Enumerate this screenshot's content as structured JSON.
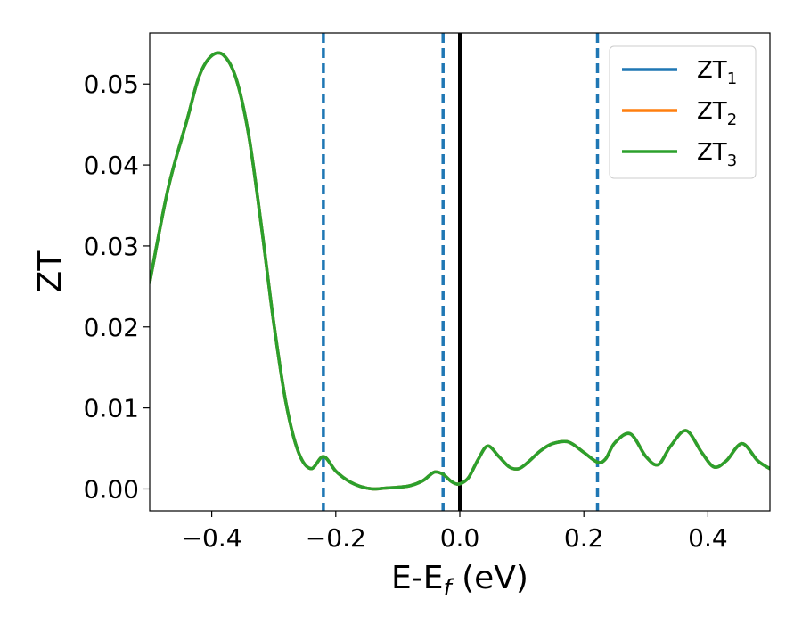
{
  "chart_data": {
    "type": "line",
    "xlabel": {
      "main": "E-E",
      "sub": "f",
      "tail": " (eV)"
    },
    "ylabel": "ZT",
    "xlim": [
      -0.5,
      0.5
    ],
    "ylim": [
      -0.0027,
      0.0563
    ],
    "xticks": [
      -0.4,
      -0.2,
      0.0,
      0.2,
      0.4
    ],
    "xtick_labels": [
      "−0.4",
      "−0.2",
      "0.0",
      "0.2",
      "0.4"
    ],
    "yticks": [
      0.0,
      0.01,
      0.02,
      0.03,
      0.04,
      0.05
    ],
    "ytick_labels": [
      "0.00",
      "0.01",
      "0.02",
      "0.03",
      "0.04",
      "0.05"
    ],
    "grid": false,
    "legend": "top-right",
    "reference_lines": [
      {
        "x": -0.22,
        "style": "dashed",
        "color": "#1f77b4"
      },
      {
        "x": -0.027,
        "style": "dashed",
        "color": "#1f77b4"
      },
      {
        "x": 0.0,
        "style": "solid",
        "color": "#000000"
      },
      {
        "x": 0.222,
        "style": "dashed",
        "color": "#1f77b4"
      }
    ],
    "x": [
      -0.5,
      -0.47,
      -0.44,
      -0.42,
      -0.4,
      -0.38,
      -0.36,
      -0.34,
      -0.32,
      -0.3,
      -0.28,
      -0.26,
      -0.24,
      -0.22,
      -0.2,
      -0.18,
      -0.16,
      -0.14,
      -0.12,
      -0.1,
      -0.08,
      -0.06,
      -0.05,
      -0.04,
      -0.027,
      -0.015,
      -0.005,
      0.005,
      0.015,
      0.03,
      0.045,
      0.063,
      0.08,
      0.095,
      0.11,
      0.13,
      0.15,
      0.175,
      0.2,
      0.222,
      0.235,
      0.25,
      0.275,
      0.3,
      0.32,
      0.34,
      0.365,
      0.39,
      0.41,
      0.43,
      0.455,
      0.48,
      0.5
    ],
    "series": [
      {
        "name": "ZT",
        "name_sub": "1",
        "color": "#1f77b4",
        "values": [
          0.0255,
          0.0372,
          0.0455,
          0.051,
          0.0535,
          0.0535,
          0.0505,
          0.0435,
          0.0325,
          0.0205,
          0.0105,
          0.0045,
          0.0025,
          0.004,
          0.0022,
          0.001,
          0.0003,
          0.0,
          0.0001,
          0.0002,
          0.0004,
          0.001,
          0.0016,
          0.0021,
          0.0018,
          0.001,
          0.0006,
          0.0008,
          0.0015,
          0.0037,
          0.0053,
          0.004,
          0.0027,
          0.0025,
          0.0033,
          0.0047,
          0.0056,
          0.0058,
          0.0045,
          0.0033,
          0.0037,
          0.0057,
          0.0068,
          0.004,
          0.003,
          0.0053,
          0.0072,
          0.0045,
          0.0027,
          0.0035,
          0.0056,
          0.0035,
          0.0025
        ]
      },
      {
        "name": "ZT",
        "name_sub": "2",
        "color": "#ff7f0e",
        "values": [
          0.0255,
          0.0372,
          0.0455,
          0.051,
          0.0535,
          0.0535,
          0.0505,
          0.0435,
          0.0325,
          0.0205,
          0.0105,
          0.0045,
          0.0025,
          0.004,
          0.0022,
          0.001,
          0.0003,
          0.0,
          0.0001,
          0.0002,
          0.0004,
          0.001,
          0.0016,
          0.0021,
          0.0018,
          0.001,
          0.0006,
          0.0008,
          0.0015,
          0.0037,
          0.0053,
          0.004,
          0.0027,
          0.0025,
          0.0033,
          0.0047,
          0.0056,
          0.0058,
          0.0045,
          0.0033,
          0.0037,
          0.0057,
          0.0068,
          0.004,
          0.003,
          0.0053,
          0.0072,
          0.0045,
          0.0027,
          0.0035,
          0.0056,
          0.0035,
          0.0025
        ]
      },
      {
        "name": "ZT",
        "name_sub": "3",
        "color": "#2ca02c",
        "values": [
          0.0255,
          0.0372,
          0.0455,
          0.051,
          0.0535,
          0.0535,
          0.0505,
          0.0435,
          0.0325,
          0.0205,
          0.0105,
          0.0045,
          0.0025,
          0.004,
          0.0022,
          0.001,
          0.0003,
          0.0,
          0.0001,
          0.0002,
          0.0004,
          0.001,
          0.0016,
          0.0021,
          0.0018,
          0.001,
          0.0006,
          0.0008,
          0.0015,
          0.0037,
          0.0053,
          0.004,
          0.0027,
          0.0025,
          0.0033,
          0.0047,
          0.0056,
          0.0058,
          0.0045,
          0.0033,
          0.0037,
          0.0057,
          0.0068,
          0.004,
          0.003,
          0.0053,
          0.0072,
          0.0045,
          0.0027,
          0.0035,
          0.0056,
          0.0035,
          0.0025
        ]
      }
    ]
  }
}
